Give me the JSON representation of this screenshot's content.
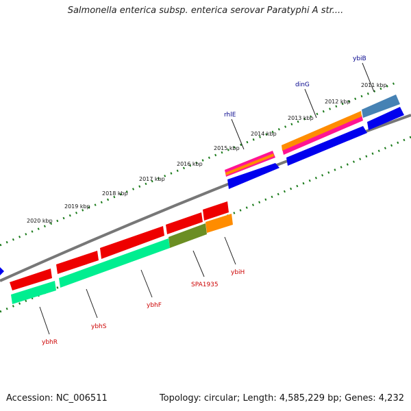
{
  "title": "Salmonella enterica subsp. enterica serovar Paratyphi A str....",
  "footer": {
    "accession": "Accession: NC_006511",
    "topology": "Topology: circular; Length: 4,585,229 bp; Genes: 4,232"
  },
  "scale_labels": [
    "2011 kbp",
    "2012 kbp",
    "2013 kbp",
    "2014 kbp",
    "2015 kbp",
    "2016 kbp",
    "2017 kbp",
    "2018 kbp",
    "2019 kbp",
    "2020 kbp"
  ],
  "gene_labels": {
    "ybiB": "ybiB",
    "dinG": "dinG",
    "rhlE": "rhlE",
    "ybhR": "ybhR",
    "ybhS": "ybhS",
    "ybhF": "ybhF",
    "SPA1935": "SPA1935",
    "ybiH": "ybiH"
  },
  "colors": {
    "forward_label": "#00008b",
    "reverse_label": "#cc0000",
    "backbone": "#777777",
    "tick": "#1a7a1a",
    "blue": "#0000ee",
    "red": "#ee0000",
    "orange": "#ff8c00",
    "magenta": "#ff1493",
    "steel": "#4682b4",
    "aqua": "#00ee90",
    "olive": "#6b8e23"
  }
}
